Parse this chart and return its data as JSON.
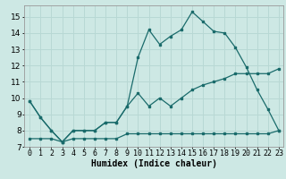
{
  "xlabel": "Humidex (Indice chaleur)",
  "bg_color": "#cde8e4",
  "grid_color": "#b8d8d4",
  "line_color": "#1a6b6b",
  "xlim": [
    -0.5,
    23.4
  ],
  "ylim": [
    7.0,
    15.7
  ],
  "yticks": [
    7,
    8,
    9,
    10,
    11,
    12,
    13,
    14,
    15
  ],
  "xticks": [
    0,
    1,
    2,
    3,
    4,
    5,
    6,
    7,
    8,
    9,
    10,
    11,
    12,
    13,
    14,
    15,
    16,
    17,
    18,
    19,
    20,
    21,
    22,
    23
  ],
  "line1_x": [
    0,
    1,
    2,
    3,
    4,
    5,
    6,
    7,
    8,
    9,
    10,
    11,
    12,
    13,
    14,
    15,
    16,
    17,
    18,
    19,
    20,
    21,
    22,
    23
  ],
  "line1_y": [
    9.8,
    8.8,
    8.0,
    7.3,
    8.0,
    8.0,
    8.0,
    8.5,
    8.5,
    9.5,
    10.3,
    9.5,
    10.0,
    9.5,
    10.0,
    10.5,
    10.8,
    11.0,
    11.2,
    11.5,
    11.5,
    11.5,
    11.5,
    11.8
  ],
  "line2_x": [
    0,
    1,
    2,
    3,
    4,
    5,
    6,
    7,
    8,
    9,
    10,
    11,
    12,
    13,
    14,
    15,
    16,
    17,
    18,
    19,
    20,
    21,
    22,
    23
  ],
  "line2_y": [
    7.5,
    7.5,
    7.5,
    7.3,
    7.5,
    7.5,
    7.5,
    7.5,
    7.5,
    7.8,
    7.8,
    7.8,
    7.8,
    7.8,
    7.8,
    7.8,
    7.8,
    7.8,
    7.8,
    7.8,
    7.8,
    7.8,
    7.8,
    8.0
  ],
  "line3_x": [
    0,
    1,
    2,
    3,
    4,
    5,
    6,
    7,
    8,
    9,
    10,
    11,
    12,
    13,
    14,
    15,
    16,
    17,
    18,
    19,
    20,
    21,
    22,
    23
  ],
  "line3_y": [
    9.8,
    8.8,
    8.0,
    7.3,
    8.0,
    8.0,
    8.0,
    8.5,
    8.5,
    9.5,
    12.5,
    14.2,
    13.3,
    13.8,
    14.2,
    15.3,
    14.7,
    14.1,
    14.0,
    13.1,
    11.9,
    10.5,
    9.3,
    8.0
  ],
  "xlabel_fontsize": 7,
  "tick_fontsize": 6
}
